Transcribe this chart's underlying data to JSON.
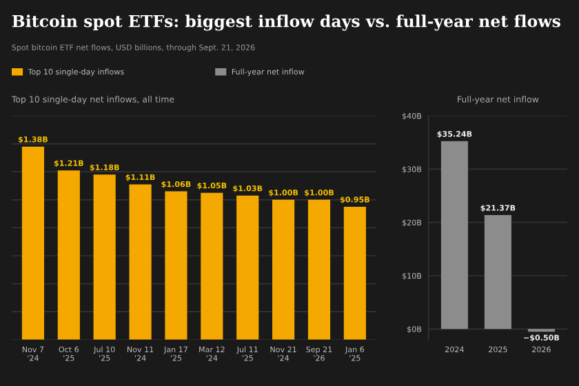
{
  "chart_data": [
    {
      "type": "bar",
      "title": "Bitcoin spot ETFs: biggest inflow days vs. full-year net flows",
      "subtitle": "Spot bitcoin ETF net flows, USD billions, through Sept. 21, 2026",
      "annotations": [
        "Top 10 single-day net inflows, all time"
      ],
      "categories": [
        "Nov 7\n'24",
        "Oct 6\n'25",
        "Jul 10\n'25",
        "Nov 11\n'24",
        "Jan 17\n'25",
        "Mar 12\n'24",
        "Jul 11\n'25",
        "Nov 21\n'24",
        "Sep 21\n'26",
        "Jan 6\n'25"
      ],
      "series": [
        {
          "name": "Top 10 single-day inflows",
          "color": "#f5a800",
          "values": [
            1.38,
            1.21,
            1.18,
            1.11,
            1.06,
            1.05,
            1.03,
            1.0,
            1.0,
            0.95
          ],
          "value_labels": [
            "$1.38B",
            "$1.21B",
            "$1.18B",
            "$1.11B",
            "$1.06B",
            "$1.05B",
            "$1.03B",
            "$1.00B",
            "$1.00B",
            "$0.95B"
          ]
        }
      ],
      "ylim": [
        0,
        1.6
      ],
      "yticks": [
        {
          "value": 0,
          "label": null
        },
        {
          "value": 0.2,
          "label": null
        },
        {
          "value": 0.4,
          "label": null
        },
        {
          "value": 0.6,
          "label": null
        },
        {
          "value": 0.8,
          "label": null
        },
        {
          "value": 1.0,
          "label": null
        },
        {
          "value": 1.2,
          "label": null
        },
        {
          "value": 1.4,
          "label": null
        },
        {
          "value": 1.6,
          "label": null
        }
      ],
      "tick_labels": "x",
      "grid": "y",
      "legend": "top left"
    },
    {
      "type": "bar",
      "title": "Full-year net inflow",
      "categories": [
        "2024",
        "2025",
        "2026"
      ],
      "series": [
        {
          "name": "Full-year net inflow",
          "color": "#8c8c8c",
          "values": [
            35.24,
            21.37,
            -0.5
          ],
          "value_labels": [
            "$35.24B",
            "$21.37B",
            "−$0.50B"
          ]
        }
      ],
      "ylim": [
        -2,
        40
      ],
      "yticks": [
        {
          "value": 0,
          "label": "$0B"
        },
        {
          "value": 10,
          "label": "$10B"
        },
        {
          "value": 20,
          "label": "$20B"
        },
        {
          "value": 30,
          "label": "$30B"
        },
        {
          "value": 40,
          "label": "$40B"
        }
      ],
      "grid": "y",
      "legend": "top"
    }
  ]
}
